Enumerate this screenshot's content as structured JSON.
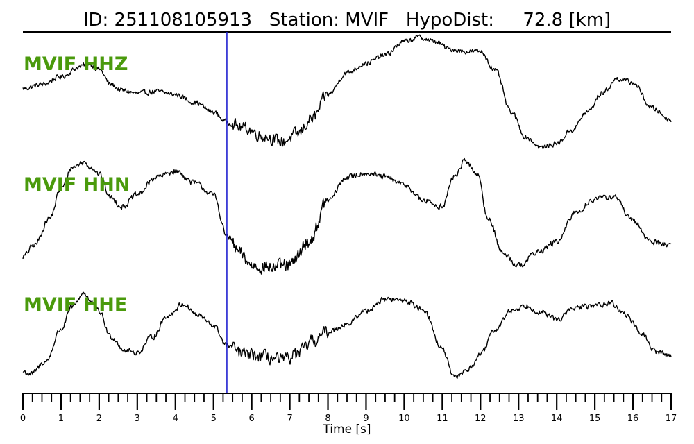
{
  "title": "ID: 251108105913   Station: MVIF   HypoDist:     72.8 [km]",
  "chart_data": {
    "type": "line",
    "title": "ID: 251108105913   Station: MVIF   HypoDist:     72.8 [km]",
    "xlabel": "Time [s]",
    "ylabel": "",
    "xlim": [
      0,
      17
    ],
    "x_ticks": [
      "0",
      "1",
      "2",
      "3",
      "4",
      "5",
      "6",
      "7",
      "8",
      "9",
      "10",
      "11",
      "12",
      "13",
      "14",
      "15",
      "16",
      "17"
    ],
    "minor_tick_step": 0.25,
    "grid": false,
    "legend": "none",
    "pick_marker": {
      "time": 5.35,
      "color": "#1f1fd0"
    },
    "colors": {
      "trace": "#000000",
      "label": "#4a9a0c",
      "marker": "#1f1fd0"
    },
    "series": [
      {
        "name": "MVIF HHZ",
        "amplitude_normalized": true,
        "noise": 0.035,
        "x": [
          0,
          0.5,
          1.0,
          1.5,
          1.7,
          2.0,
          2.3,
          2.6,
          3.0,
          3.5,
          4.0,
          4.5,
          5.0,
          5.35,
          5.8,
          6.3,
          6.8,
          7.2,
          7.6,
          8.0,
          8.5,
          9.0,
          9.5,
          10.0,
          10.4,
          10.8,
          11.2,
          11.6,
          12.0,
          12.4,
          12.8,
          13.2,
          13.6,
          14.0,
          14.4,
          14.8,
          15.2,
          15.6,
          16.0,
          16.5,
          17.0
        ],
        "values": [
          0.05,
          0.12,
          0.25,
          0.42,
          0.48,
          0.38,
          0.12,
          0.02,
          -0.03,
          0.0,
          -0.05,
          -0.18,
          -0.35,
          -0.52,
          -0.62,
          -0.75,
          -0.85,
          -0.72,
          -0.45,
          -0.05,
          0.32,
          0.48,
          0.62,
          0.85,
          0.92,
          0.85,
          0.72,
          0.68,
          0.68,
          0.35,
          -0.35,
          -0.78,
          -0.95,
          -0.88,
          -0.65,
          -0.35,
          -0.02,
          0.22,
          0.15,
          -0.28,
          -0.48
        ]
      },
      {
        "name": "MVIF HHN",
        "amplitude_normalized": true,
        "noise": 0.04,
        "x": [
          0,
          0.3,
          0.7,
          1.0,
          1.3,
          1.6,
          1.8,
          2.0,
          2.3,
          2.6,
          3.0,
          3.5,
          4.0,
          4.5,
          5.0,
          5.35,
          5.7,
          6.0,
          6.5,
          7.0,
          7.5,
          8.0,
          8.5,
          9.0,
          9.5,
          10.0,
          10.5,
          11.0,
          11.3,
          11.6,
          11.9,
          12.2,
          12.6,
          13.0,
          13.5,
          14.0,
          14.5,
          15.0,
          15.5,
          16.0,
          16.5,
          17.0
        ],
        "values": [
          -0.8,
          -0.6,
          -0.15,
          0.35,
          0.72,
          0.8,
          0.72,
          0.6,
          0.2,
          0.05,
          0.25,
          0.55,
          0.65,
          0.45,
          0.25,
          -0.45,
          -0.75,
          -0.95,
          -0.98,
          -0.95,
          -0.55,
          0.15,
          0.55,
          0.62,
          0.55,
          0.42,
          0.15,
          0.05,
          0.55,
          0.82,
          0.62,
          -0.15,
          -0.75,
          -0.95,
          -0.72,
          -0.55,
          -0.05,
          0.18,
          0.22,
          -0.2,
          -0.55,
          -0.6
        ]
      },
      {
        "name": "MVIF HHE",
        "amplitude_normalized": true,
        "noise": 0.045,
        "x": [
          0,
          0.2,
          0.6,
          1.0,
          1.3,
          1.6,
          1.8,
          2.0,
          2.3,
          2.7,
          3.0,
          3.4,
          3.8,
          4.2,
          4.6,
          5.0,
          5.35,
          5.8,
          6.3,
          6.8,
          7.2,
          7.6,
          8.0,
          8.5,
          9.0,
          9.5,
          10.0,
          10.5,
          11.0,
          11.3,
          11.7,
          12.0,
          12.4,
          12.8,
          13.2,
          13.6,
          14.0,
          14.5,
          15.0,
          15.4,
          15.8,
          16.2,
          16.6,
          17.0
        ],
        "values": [
          -0.8,
          -0.85,
          -0.6,
          0.05,
          0.5,
          0.78,
          0.58,
          0.4,
          -0.1,
          -0.38,
          -0.42,
          -0.1,
          0.32,
          0.55,
          0.32,
          0.12,
          -0.28,
          -0.45,
          -0.5,
          -0.58,
          -0.45,
          -0.2,
          0.0,
          0.15,
          0.42,
          0.65,
          0.62,
          0.45,
          -0.35,
          -0.92,
          -0.75,
          -0.45,
          0.05,
          0.42,
          0.52,
          0.38,
          0.25,
          0.48,
          0.52,
          0.58,
          0.35,
          -0.02,
          -0.4,
          -0.48
        ]
      }
    ]
  }
}
